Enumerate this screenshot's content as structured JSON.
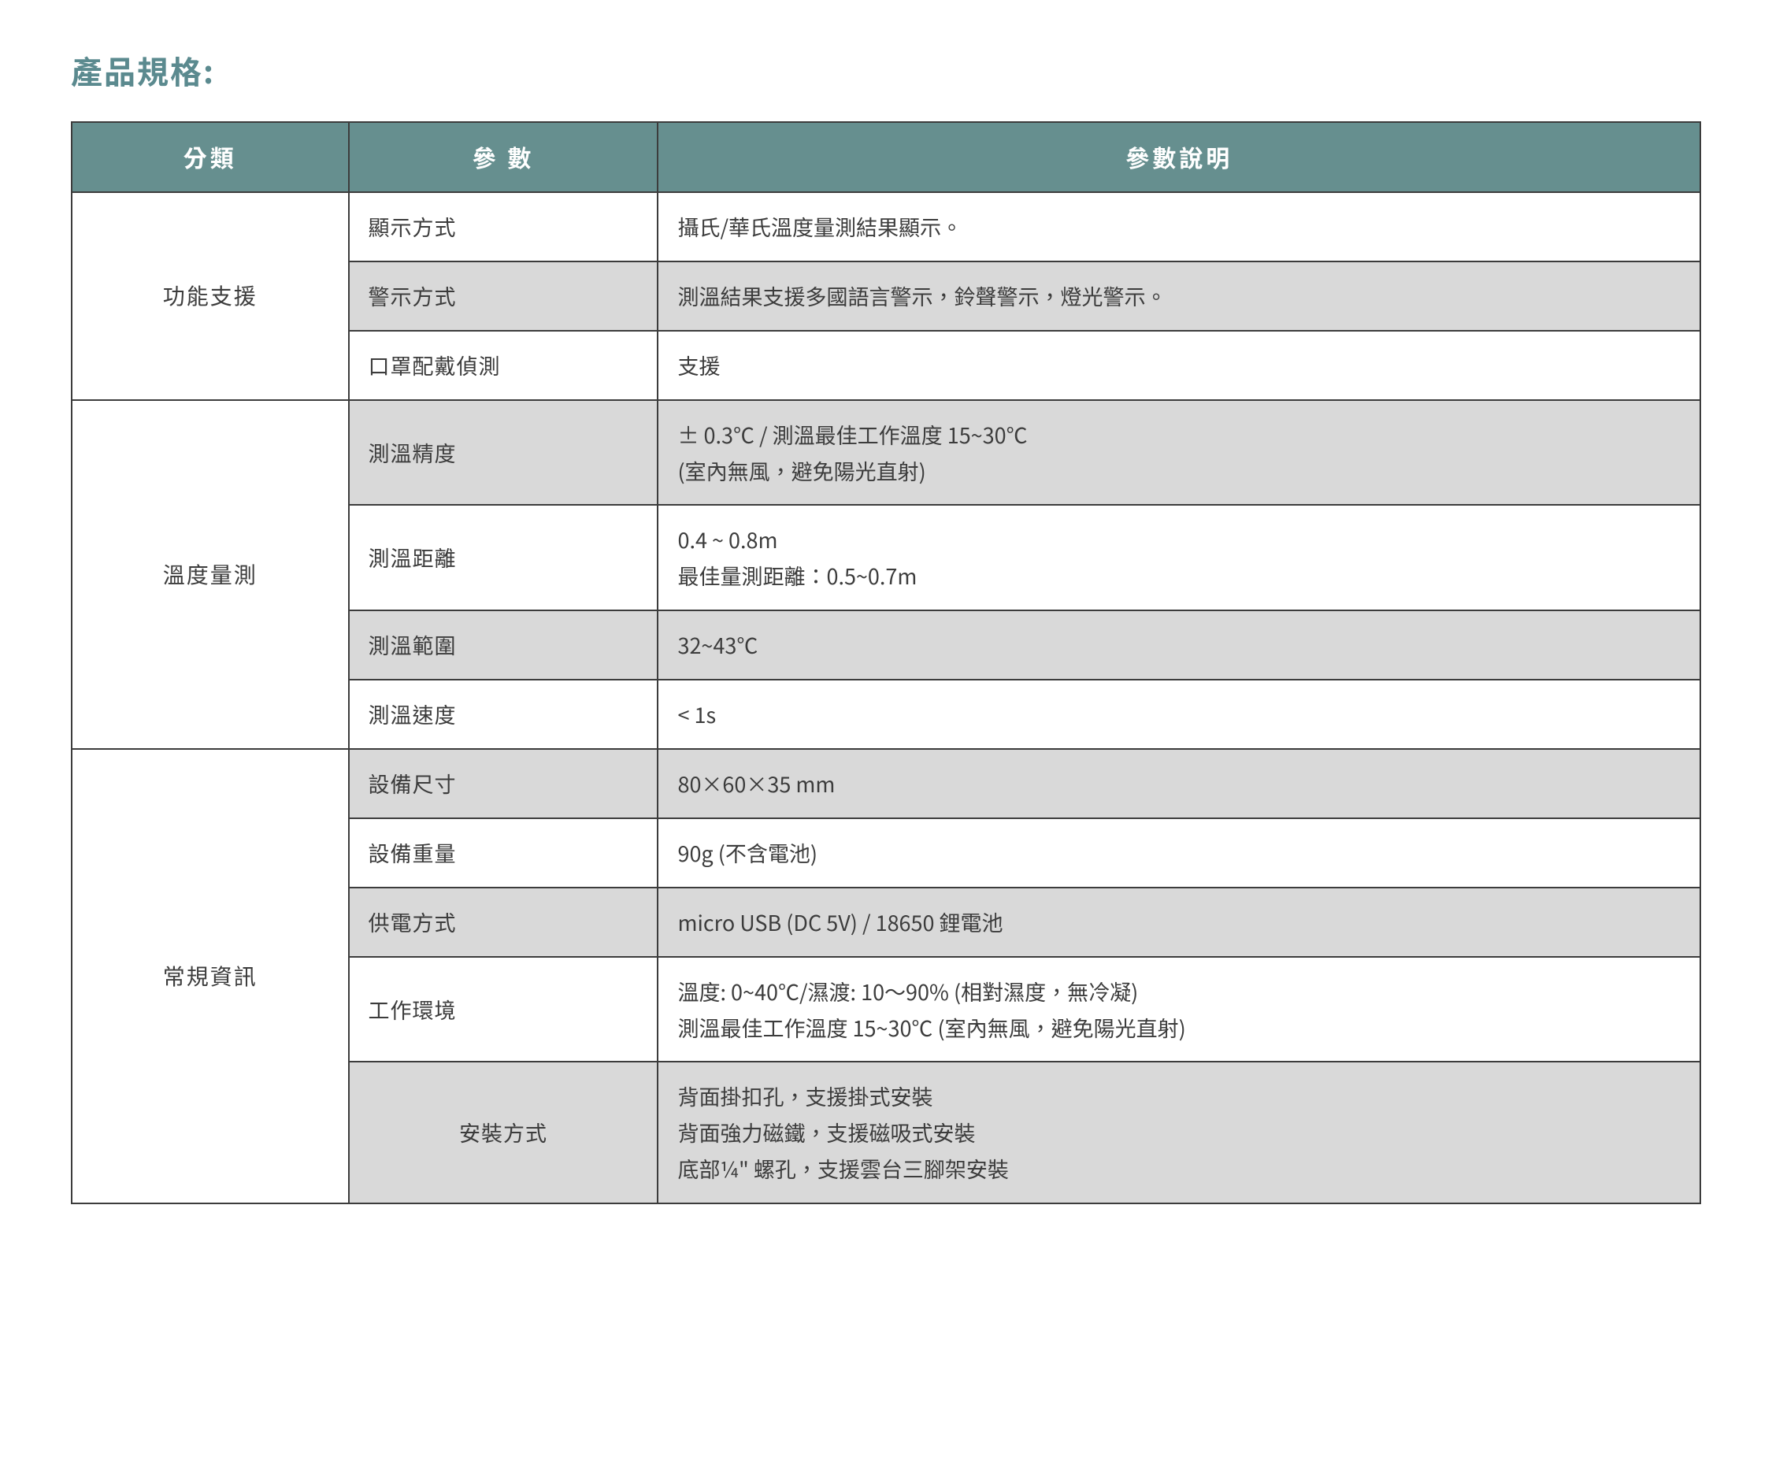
{
  "title": "產品規格:",
  "colors": {
    "title": "#5b8a8f",
    "header_bg": "#668f8f",
    "header_text": "#ffffff",
    "border": "#3c3c3c",
    "shade": "#d9d9d9",
    "page_bg": "#ffffff",
    "text": "#3c3c3c"
  },
  "columns": [
    "分類",
    "參 數",
    "參數說明"
  ],
  "column_widths_pct": [
    17,
    19,
    64
  ],
  "groups": [
    {
      "category": "功能支援",
      "rows": [
        {
          "param": "顯示方式",
          "desc": "攝氏/華氏溫度量測結果顯示。",
          "shaded": false
        },
        {
          "param": "警示方式",
          "desc": "測溫結果支援多國語言警示，鈴聲警示，燈光警示。",
          "shaded": true
        },
        {
          "param": "口罩配戴偵測",
          "desc": "支援",
          "shaded": false
        }
      ]
    },
    {
      "category": "溫度量測",
      "rows": [
        {
          "param": "測溫精度",
          "desc": "± 0.3℃ / 測溫最佳工作溫度 15~30℃\n(室內無風，避免陽光直射)",
          "shaded": true
        },
        {
          "param": "測溫距離",
          "desc": "0.4 ~ 0.8m\n最佳量測距離：0.5~0.7m",
          "shaded": false
        },
        {
          "param": "測溫範圍",
          "desc": "32~43℃",
          "shaded": true
        },
        {
          "param": "測溫速度",
          "desc": "< 1s",
          "shaded": false
        }
      ]
    },
    {
      "category": "常規資訊",
      "rows": [
        {
          "param": "設備尺寸",
          "desc": "80×60×35 mm",
          "shaded": true
        },
        {
          "param": "設備重量",
          "desc": "90g (不含電池)",
          "shaded": false
        },
        {
          "param": "供電方式",
          "desc": "micro USB (DC 5V) / 18650 鋰電池",
          "shaded": true
        },
        {
          "param": "工作環境",
          "desc": "溫度: 0~40℃/濕渡: 10～90% (相對濕度，無冷凝)\n測溫最佳工作溫度 15~30℃ (室內無風，避免陽光直射)",
          "shaded": false
        },
        {
          "param": "安裝方式",
          "desc": "背面掛扣孔，支援掛式安裝\n背面強力磁鐵，支援磁吸式安裝\n底部¼\" 螺孔，支援雲台三腳架安裝",
          "shaded": true,
          "param_center": true
        }
      ]
    }
  ]
}
